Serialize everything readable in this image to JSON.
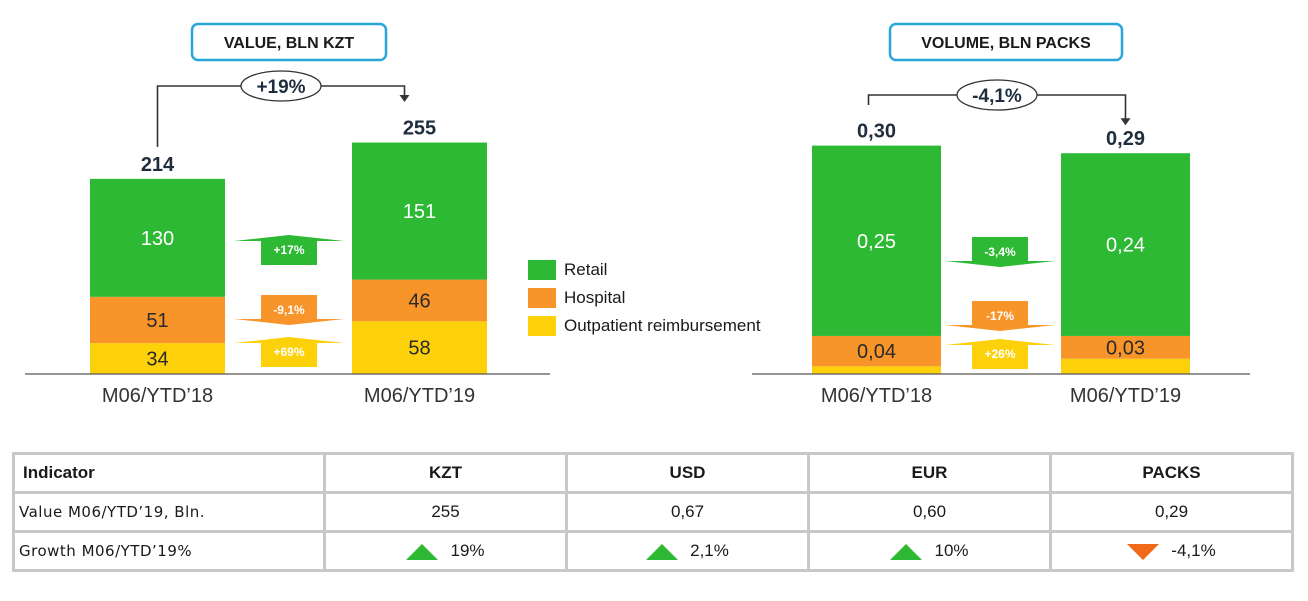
{
  "chart_data": [
    {
      "type": "bar",
      "stacked": true,
      "title": "VALUE, BLN KZT",
      "categories": [
        "M06/YTD’18",
        "M06/YTD’19"
      ],
      "series": [
        {
          "name": "Outpatient reimbursement",
          "values": [
            34,
            58
          ],
          "labels": [
            "34",
            "58"
          ],
          "growth": "+69%"
        },
        {
          "name": "Hospital",
          "values": [
            51,
            46
          ],
          "labels": [
            "51",
            "46"
          ],
          "growth": "-9,1%"
        },
        {
          "name": "Retail",
          "values": [
            130,
            151
          ],
          "labels": [
            "130",
            "151"
          ],
          "growth": "+17%"
        }
      ],
      "totals": [
        "214",
        "255"
      ],
      "total_growth": "+19%",
      "ylim": [
        0,
        260
      ]
    },
    {
      "type": "bar",
      "stacked": true,
      "title": "VOLUME, BLN PACKS",
      "categories": [
        "M06/YTD’18",
        "M06/YTD’19"
      ],
      "series": [
        {
          "name": "Outpatient reimbursement",
          "values": [
            0.01,
            0.02
          ],
          "labels": [
            "",
            ""
          ],
          "growth": "+26%"
        },
        {
          "name": "Hospital",
          "values": [
            0.04,
            0.03
          ],
          "labels": [
            "0,04",
            "0,03"
          ],
          "growth": "-17%"
        },
        {
          "name": "Retail",
          "values": [
            0.25,
            0.24
          ],
          "labels": [
            "0,25",
            "0,24"
          ],
          "growth": "-3,4%"
        }
      ],
      "totals": [
        "0,30",
        "0,29"
      ],
      "total_growth": "-4,1%",
      "ylim": [
        0,
        0.31
      ]
    }
  ],
  "legend": [
    {
      "name": "Retail",
      "color": "#2db934"
    },
    {
      "name": "Hospital",
      "color": "#f7952b"
    },
    {
      "name": "Outpatient reimbursement",
      "color": "#fdd10a"
    }
  ],
  "colors": {
    "retail": "#2db934",
    "hospital": "#f7952b",
    "outpatient": "#fdd10a",
    "title_border": "#29a6d8",
    "up": "#2db934",
    "down": "#f16a1a"
  },
  "table": {
    "headers": [
      "Indicator",
      "KZT",
      "USD",
      "EUR",
      "PACKS"
    ],
    "rows": [
      {
        "label": "Value  M06/YTD’19, Bln.",
        "cells": [
          {
            "text": "255",
            "trend": ""
          },
          {
            "text": "0,67",
            "trend": ""
          },
          {
            "text": "0,60",
            "trend": ""
          },
          {
            "text": "0,29",
            "trend": ""
          }
        ]
      },
      {
        "label": "Growth  M06/YTD’19%",
        "cells": [
          {
            "text": "19%",
            "trend": "up"
          },
          {
            "text": "2,1%",
            "trend": "up"
          },
          {
            "text": "10%",
            "trend": "up"
          },
          {
            "text": "-4,1%",
            "trend": "down"
          }
        ]
      }
    ]
  }
}
